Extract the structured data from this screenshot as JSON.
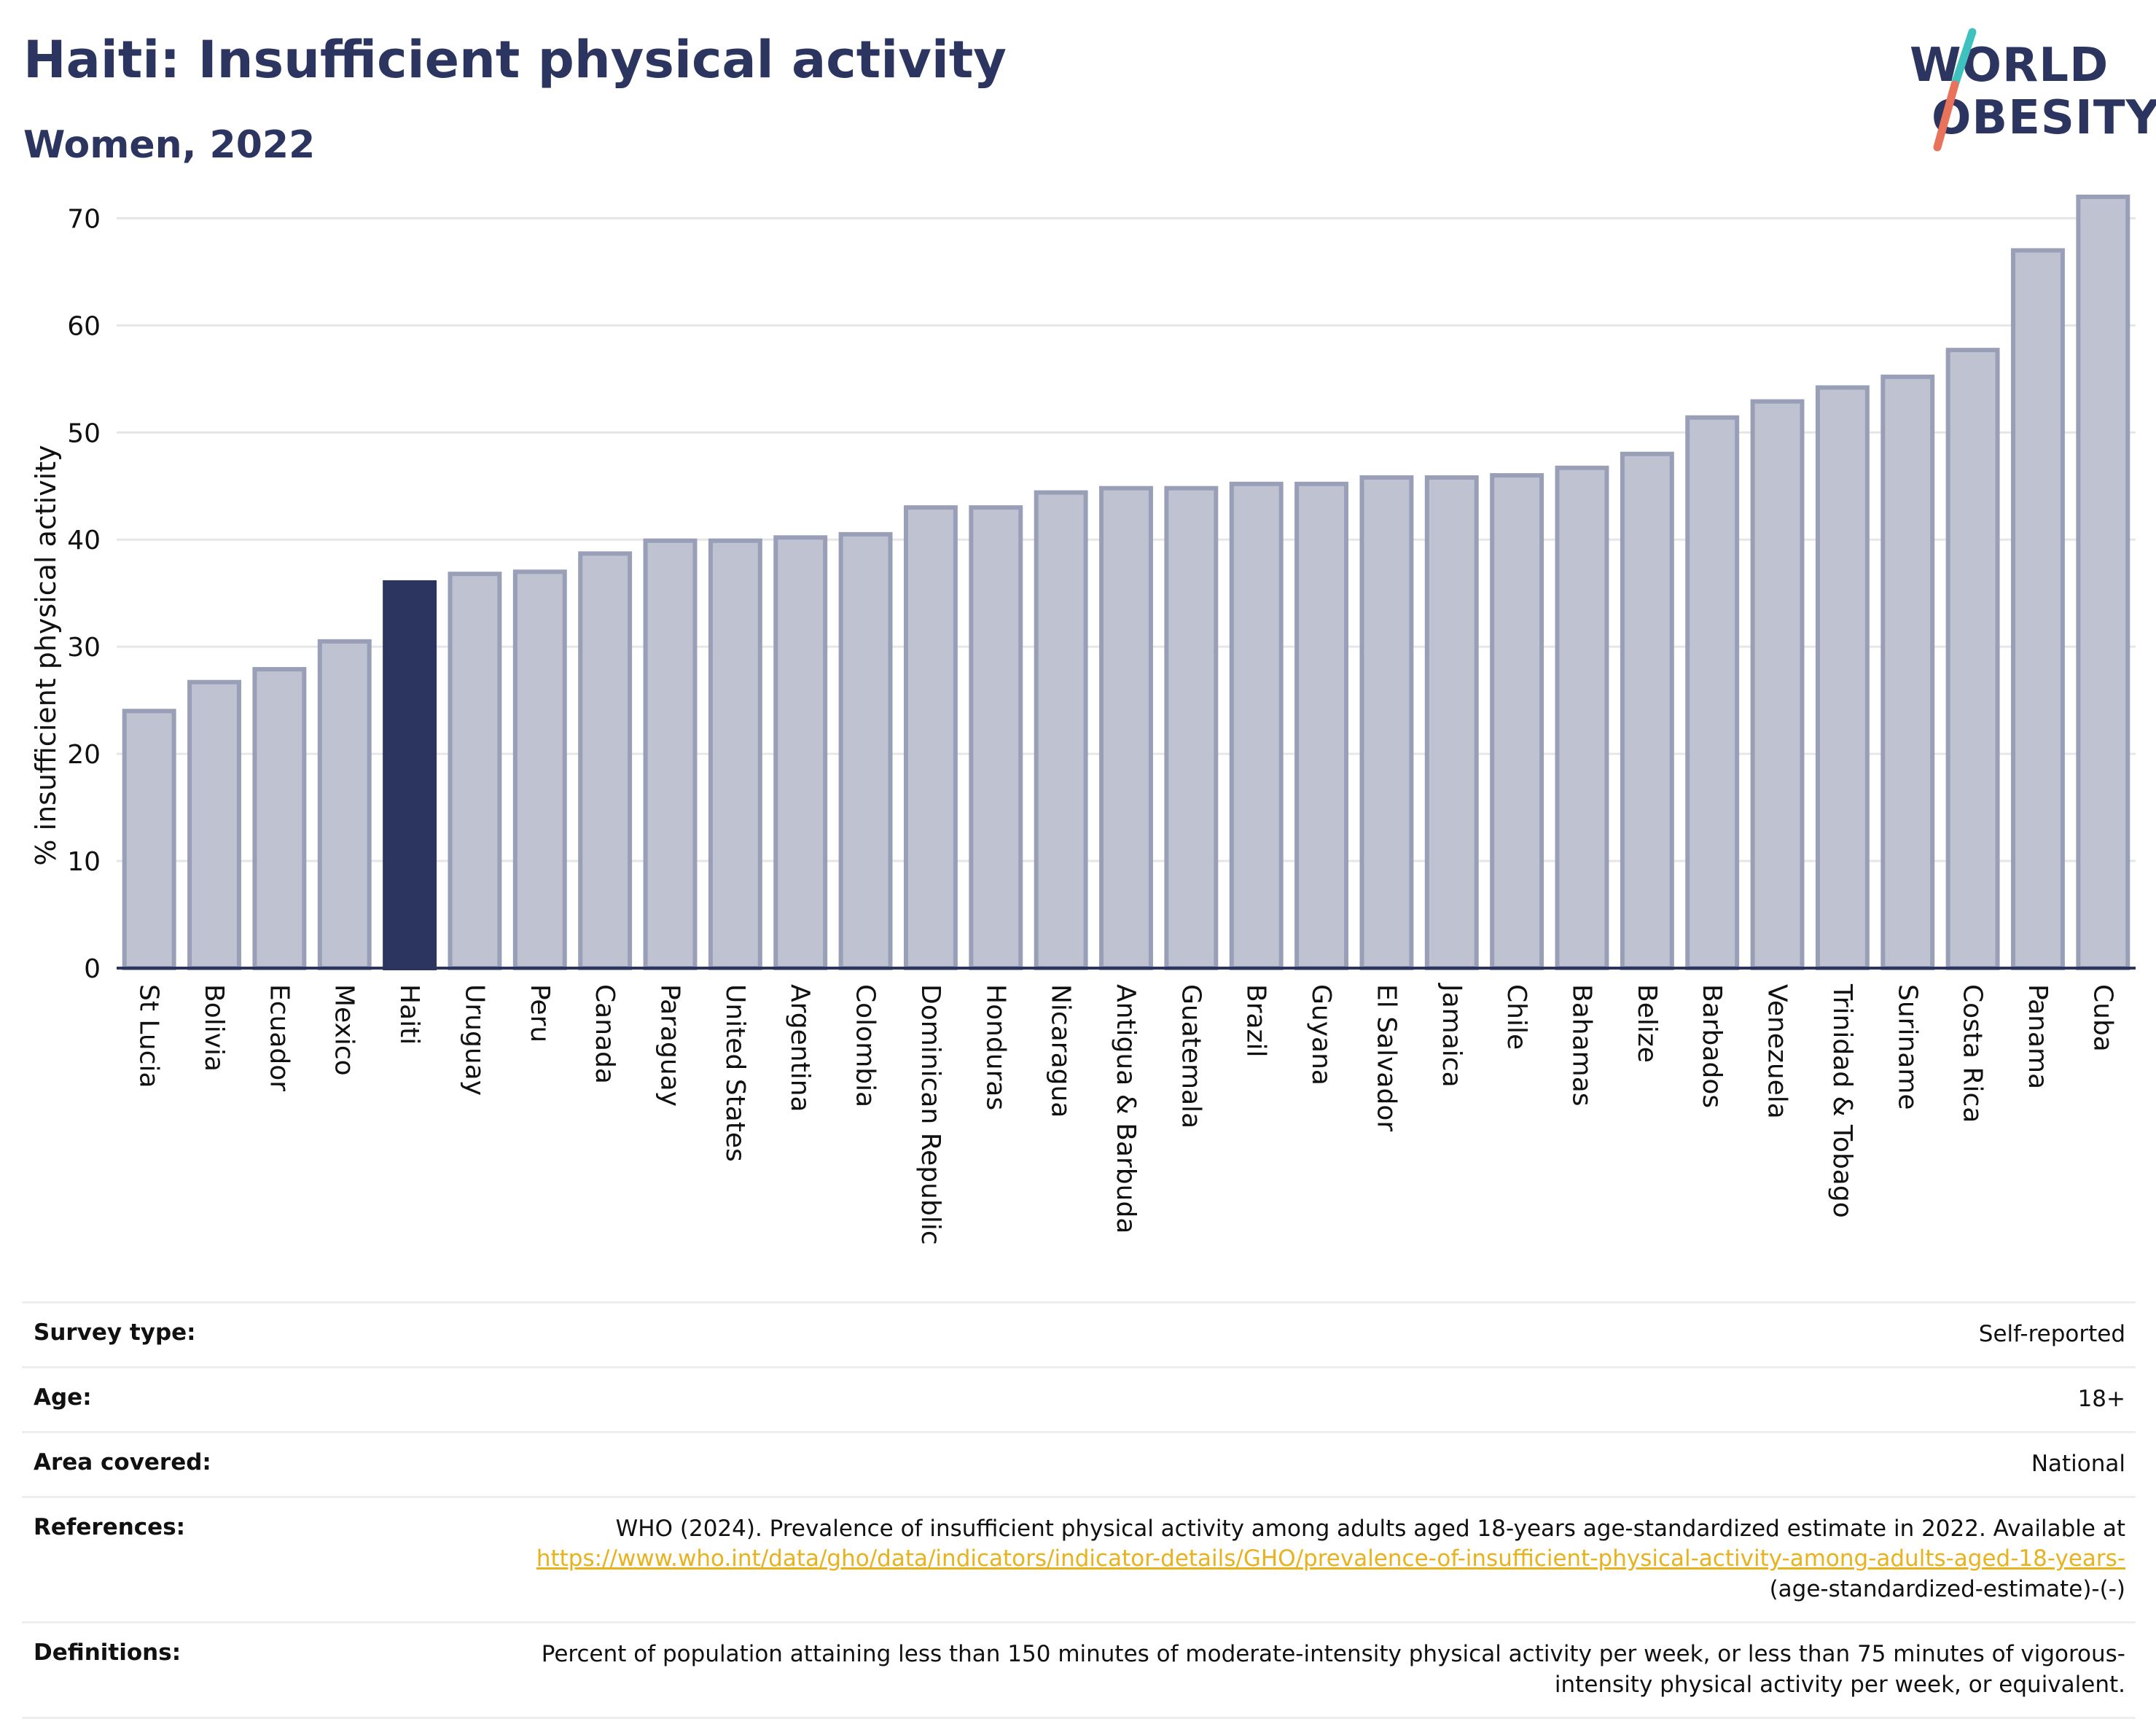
{
  "header": {
    "title": "Haiti: Insufficient physical activity",
    "subtitle": "Women, 2022"
  },
  "logo": {
    "line1": "WORLD",
    "line2": "OBESITY"
  },
  "colors": {
    "highlight": "#2b3560",
    "bar_fill": "#bfc2d0",
    "bar_stroke": "#9a9fb8",
    "grid": "#e6e6e6",
    "axis": "#2b3560",
    "logo_teal": "#3fc1c0",
    "logo_coral": "#e8735a",
    "link": "#e8b21d"
  },
  "chart_data": {
    "type": "bar",
    "ylabel": "% insufficient physical activity",
    "ylim": [
      0,
      72
    ],
    "yticks": [
      0,
      10,
      20,
      30,
      40,
      50,
      60,
      70
    ],
    "grid": true,
    "highlight": "Haiti",
    "categories": [
      "St Lucia",
      "Bolivia",
      "Ecuador",
      "Mexico",
      "Haiti",
      "Uruguay",
      "Peru",
      "Canada",
      "Paraguay",
      "United States",
      "Argentina",
      "Colombia",
      "Dominican Republic",
      "Honduras",
      "Nicaragua",
      "Antigua & Barbuda",
      "Guatemala",
      "Brazil",
      "Guyana",
      "El Salvador",
      "Jamaica",
      "Chile",
      "Bahamas",
      "Belize",
      "Barbados",
      "Venezuela",
      "Trinidad & Tobago",
      "Suriname",
      "Costa Rica",
      "Panama",
      "Cuba"
    ],
    "values": [
      24.0,
      26.7,
      27.9,
      30.5,
      36.0,
      36.8,
      37.0,
      38.7,
      39.9,
      39.9,
      40.2,
      40.5,
      43.0,
      43.0,
      44.4,
      44.8,
      44.8,
      45.2,
      45.2,
      45.8,
      45.8,
      46.0,
      46.7,
      48.0,
      51.4,
      52.9,
      54.2,
      55.2,
      57.7,
      67.0,
      72.0
    ]
  },
  "info": {
    "survey_type": {
      "label": "Survey type:",
      "value": "Self-reported"
    },
    "age": {
      "label": "Age:",
      "value": "18+"
    },
    "area": {
      "label": "Area covered:",
      "value": "National"
    },
    "references": {
      "label": "References:",
      "text": "WHO (2024). Prevalence of insufficient physical activity among adults aged 18-years age-standardized estimate in 2022. Available at",
      "link": "https://www.who.int/data/gho/data/indicators/indicator-details/GHO/prevalence-of-insufficient-physical-activity-among-adults-aged-18-years-",
      "suffix": "(age-standardized-estimate)-(-)"
    },
    "definitions": {
      "label": "Definitions:",
      "value": "Percent of population attaining less than 150 minutes of moderate-intensity physical activity per week, or less than 75 minutes of vigorous-intensity physical activity per week, or equivalent."
    }
  }
}
